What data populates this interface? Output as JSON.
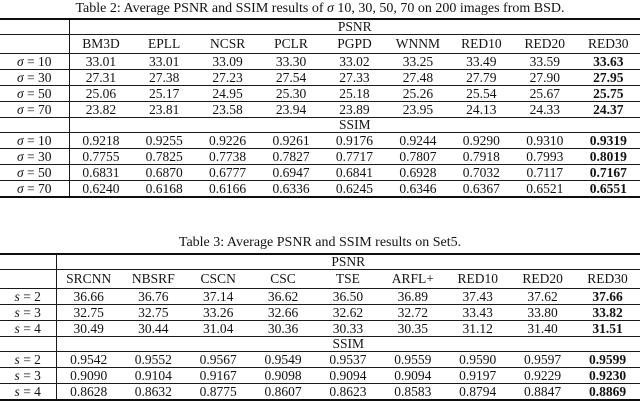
{
  "page": {
    "background": "#ffffff",
    "text_color": "#131313",
    "rule_color": "#1a1a1a"
  },
  "tables": [
    {
      "name": "table-2",
      "caption": {
        "pre": "Table 2: Average PSNR and SSIM results of ",
        "sym": "σ",
        "post": " 10, 30, 50, 70 on 200 images from BSD."
      },
      "label_col_width": 69,
      "bold_column_index": 8,
      "methods": [
        "BM3D",
        "EPLL",
        "NCSR",
        "PCLR",
        "PGPD",
        "WNNM",
        "RED10",
        "RED20",
        "RED30"
      ],
      "sections": [
        {
          "metric": "PSNR",
          "show_methods": true,
          "rows": [
            {
              "sym": "σ",
              "val": "10",
              "values": [
                "33.01",
                "33.01",
                "33.09",
                "33.30",
                "33.02",
                "33.25",
                "33.49",
                "33.59",
                "33.63"
              ]
            },
            {
              "sym": "σ",
              "val": "30",
              "values": [
                "27.31",
                "27.38",
                "27.23",
                "27.54",
                "27.33",
                "27.48",
                "27.79",
                "27.90",
                "27.95"
              ]
            },
            {
              "sym": "σ",
              "val": "50",
              "values": [
                "25.06",
                "25.17",
                "24.95",
                "25.30",
                "25.18",
                "25.26",
                "25.54",
                "25.67",
                "25.75"
              ]
            },
            {
              "sym": "σ",
              "val": "70",
              "values": [
                "23.82",
                "23.81",
                "23.58",
                "23.94",
                "23.89",
                "23.95",
                "24.13",
                "24.33",
                "24.37"
              ]
            }
          ]
        },
        {
          "metric": "SSIM",
          "show_methods": false,
          "rows": [
            {
              "sym": "σ",
              "val": "10",
              "values": [
                "0.9218",
                "0.9255",
                "0.9226",
                "0.9261",
                "0.9176",
                "0.9244",
                "0.9290",
                "0.9310",
                "0.9319"
              ]
            },
            {
              "sym": "σ",
              "val": "30",
              "values": [
                "0.7755",
                "0.7825",
                "0.7738",
                "0.7827",
                "0.7717",
                "0.7807",
                "0.7918",
                "0.7993",
                "0.8019"
              ]
            },
            {
              "sym": "σ",
              "val": "50",
              "values": [
                "0.6831",
                "0.6870",
                "0.6777",
                "0.6947",
                "0.6841",
                "0.6928",
                "0.7032",
                "0.7117",
                "0.7167"
              ]
            },
            {
              "sym": "σ",
              "val": "70",
              "values": [
                "0.6240",
                "0.6168",
                "0.6166",
                "0.6336",
                "0.6245",
                "0.6346",
                "0.6367",
                "0.6521",
                "0.6551"
              ]
            }
          ]
        }
      ]
    },
    {
      "name": "table-3",
      "caption": {
        "pre": "Table 3: Average PSNR and SSIM results on Set5.",
        "sym": "",
        "post": ""
      },
      "label_col_width": 56,
      "bold_column_index": 8,
      "methods": [
        "SRCNN",
        "NBSRF",
        "CSCN",
        "CSC",
        "TSE",
        "ARFL+",
        "RED10",
        "RED20",
        "RED30"
      ],
      "sections": [
        {
          "metric": "PSNR",
          "show_methods": true,
          "rows": [
            {
              "sym": "s",
              "val": "2",
              "values": [
                "36.66",
                "36.76",
                "37.14",
                "36.62",
                "36.50",
                "36.89",
                "37.43",
                "37.62",
                "37.66"
              ]
            },
            {
              "sym": "s",
              "val": "3",
              "values": [
                "32.75",
                "32.75",
                "33.26",
                "32.66",
                "32.62",
                "32.72",
                "33.43",
                "33.80",
                "33.82"
              ]
            },
            {
              "sym": "s",
              "val": "4",
              "values": [
                "30.49",
                "30.44",
                "31.04",
                "30.36",
                "30.33",
                "30.35",
                "31.12",
                "31.40",
                "31.51"
              ]
            }
          ]
        },
        {
          "metric": "SSIM",
          "show_methods": false,
          "rows": [
            {
              "sym": "s",
              "val": "2",
              "values": [
                "0.9542",
                "0.9552",
                "0.9567",
                "0.9549",
                "0.9537",
                "0.9559",
                "0.9590",
                "0.9597",
                "0.9599"
              ]
            },
            {
              "sym": "s",
              "val": "3",
              "values": [
                "0.9090",
                "0.9104",
                "0.9167",
                "0.9098",
                "0.9094",
                "0.9094",
                "0.9197",
                "0.9229",
                "0.9230"
              ]
            },
            {
              "sym": "s",
              "val": "4",
              "values": [
                "0.8628",
                "0.8632",
                "0.8775",
                "0.8607",
                "0.8623",
                "0.8583",
                "0.8794",
                "0.8847",
                "0.8869"
              ]
            }
          ]
        }
      ]
    }
  ]
}
